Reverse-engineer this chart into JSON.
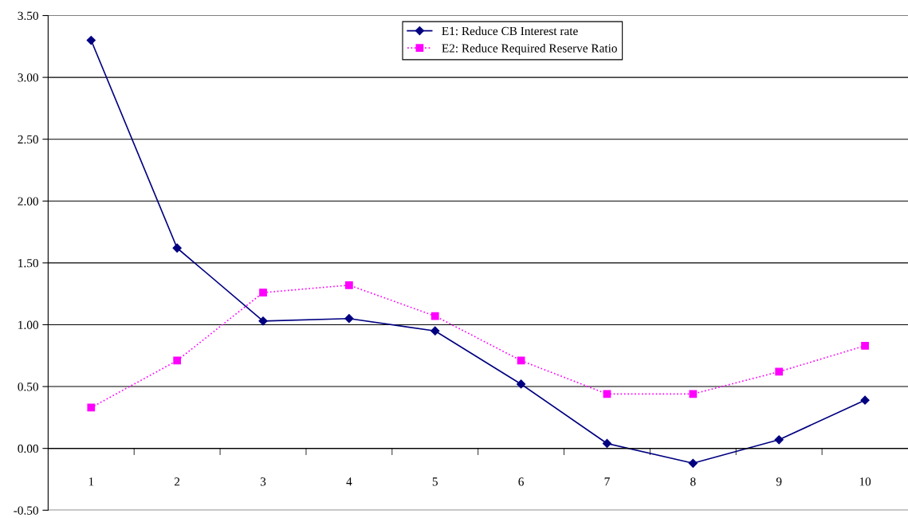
{
  "chart_data": {
    "type": "line",
    "categories": [
      "1",
      "2",
      "3",
      "4",
      "5",
      "6",
      "7",
      "8",
      "9",
      "10"
    ],
    "series": [
      {
        "name": "E1: Reduce CB Interest rate",
        "color": "#000080",
        "marker": "diamond",
        "line_style": "solid",
        "values": [
          3.3,
          1.62,
          1.03,
          1.05,
          0.95,
          0.52,
          0.04,
          -0.12,
          0.07,
          0.39
        ]
      },
      {
        "name": "E2: Reduce Required Reserve Ratio",
        "color": "#ff00ff",
        "marker": "square",
        "line_style": "dotted",
        "values": [
          0.33,
          0.71,
          1.26,
          1.32,
          1.07,
          0.71,
          0.44,
          0.44,
          0.62,
          0.83
        ]
      }
    ],
    "ylim": [
      -0.5,
      3.5
    ],
    "yticks": [
      {
        "value": -0.5,
        "label": "-0.50"
      },
      {
        "value": 0,
        "label": "0.00"
      },
      {
        "value": 0.5,
        "label": "0.50"
      },
      {
        "value": 1,
        "label": "1.00"
      },
      {
        "value": 1.5,
        "label": "1.50"
      },
      {
        "value": 2,
        "label": "2.00"
      },
      {
        "value": 2.5,
        "label": "2.50"
      },
      {
        "value": 3,
        "label": "3.00"
      },
      {
        "value": 3.5,
        "label": "3.50"
      }
    ],
    "grid": "y",
    "legend": "top"
  }
}
